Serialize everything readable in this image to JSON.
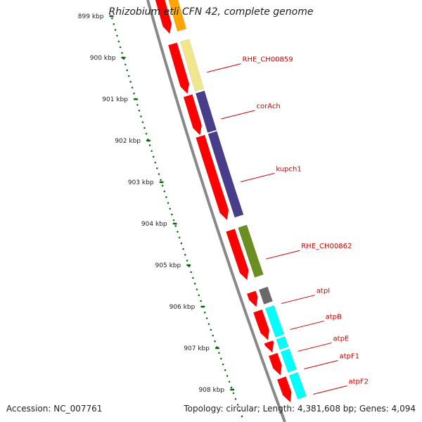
{
  "title": "Rhizobium etli CFN 42, complete genome",
  "accession": "Accession: NC_007761",
  "summary": "Topology: circular; Length: 4,381,608 bp; Genes: 4,094",
  "colors": {
    "cds": "#ff0000",
    "backbone": "#888888",
    "ticks": "#006400",
    "label": "#cc0000",
    "RHE_CH00859": "#f0e68c",
    "corAch": "#483d8b",
    "kupch1": "#483d8b",
    "RHE_CH00862": "#6b8e23",
    "atpI": "#696969",
    "atpB": "#00ffff",
    "atpE": "#00ffff",
    "atpF1": "#00ffff",
    "atpF2": "#00ffff"
  },
  "ruler": [
    {
      "label": "899 kbp",
      "kbp": 899
    },
    {
      "label": "900 kbp",
      "kbp": 900
    },
    {
      "label": "901 kbp",
      "kbp": 901
    },
    {
      "label": "902 kbp",
      "kbp": 902
    },
    {
      "label": "903 kbp",
      "kbp": 903
    },
    {
      "label": "904 kbp",
      "kbp": 904
    },
    {
      "label": "905 kbp",
      "kbp": 905
    },
    {
      "label": "906 kbp",
      "kbp": 906
    },
    {
      "label": "907 kbp",
      "kbp": 907
    },
    {
      "label": "908 kbp",
      "kbp": 908
    }
  ],
  "genes": [
    {
      "name": "RHE_CH00859",
      "start_kbp": 899.75,
      "end_kbp": 900.95
    },
    {
      "name": "corAch",
      "start_kbp": 901.0,
      "end_kbp": 901.95
    },
    {
      "name": "kupch1",
      "start_kbp": 901.98,
      "end_kbp": 904.0
    },
    {
      "name": "RHE_CH00862",
      "start_kbp": 904.25,
      "end_kbp": 905.45
    },
    {
      "name": "atpI",
      "start_kbp": 905.75,
      "end_kbp": 906.1
    },
    {
      "name": "atpB",
      "start_kbp": 906.2,
      "end_kbp": 906.9
    },
    {
      "name": "atpE",
      "start_kbp": 906.95,
      "end_kbp": 907.2
    },
    {
      "name": "atpF1",
      "start_kbp": 907.25,
      "end_kbp": 907.75
    },
    {
      "name": "atpF2",
      "start_kbp": 907.82,
      "end_kbp": 908.4
    }
  ],
  "extra_cds": [
    {
      "start_kbp": 898.5,
      "end_kbp": 899.5,
      "color": "#ffa500"
    }
  ]
}
